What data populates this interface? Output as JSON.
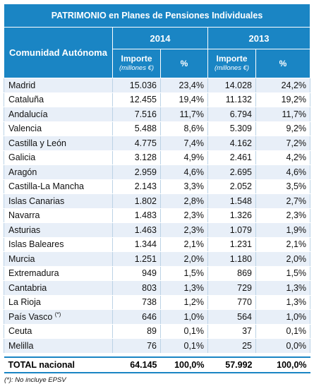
{
  "title": "PATRIMONIO en Planes de Pensiones Individuales",
  "headers": {
    "region": "Comunidad Autónoma",
    "year_a": "2014",
    "year_b": "2013",
    "importe": "Importe",
    "importe_unit": "(millones €)",
    "percent": "%"
  },
  "rows": [
    {
      "name": "Madrid",
      "note": "",
      "imp14": "15.036",
      "pct14": "23,4%",
      "imp13": "14.028",
      "pct13": "24,2%"
    },
    {
      "name": "Cataluña",
      "note": "",
      "imp14": "12.455",
      "pct14": "19,4%",
      "imp13": "11.132",
      "pct13": "19,2%"
    },
    {
      "name": "Andalucía",
      "note": "",
      "imp14": "7.516",
      "pct14": "11,7%",
      "imp13": "6.794",
      "pct13": "11,7%"
    },
    {
      "name": "Valencia",
      "note": "",
      "imp14": "5.488",
      "pct14": "8,6%",
      "imp13": "5.309",
      "pct13": "9,2%"
    },
    {
      "name": "Castilla y León",
      "note": "",
      "imp14": "4.775",
      "pct14": "7,4%",
      "imp13": "4.162",
      "pct13": "7,2%"
    },
    {
      "name": "Galicia",
      "note": "",
      "imp14": "3.128",
      "pct14": "4,9%",
      "imp13": "2.461",
      "pct13": "4,2%"
    },
    {
      "name": "Aragón",
      "note": "",
      "imp14": "2.959",
      "pct14": "4,6%",
      "imp13": "2.695",
      "pct13": "4,6%"
    },
    {
      "name": "Castilla-La Mancha",
      "note": "",
      "imp14": "2.143",
      "pct14": "3,3%",
      "imp13": "2.052",
      "pct13": "3,5%"
    },
    {
      "name": "Islas Canarias",
      "note": "",
      "imp14": "1.802",
      "pct14": "2,8%",
      "imp13": "1.548",
      "pct13": "2,7%"
    },
    {
      "name": "Navarra",
      "note": "",
      "imp14": "1.483",
      "pct14": "2,3%",
      "imp13": "1.326",
      "pct13": "2,3%"
    },
    {
      "name": "Asturias",
      "note": "",
      "imp14": "1.463",
      "pct14": "2,3%",
      "imp13": "1.079",
      "pct13": "1,9%"
    },
    {
      "name": "Islas Baleares",
      "note": "",
      "imp14": "1.344",
      "pct14": "2,1%",
      "imp13": "1.231",
      "pct13": "2,1%"
    },
    {
      "name": "Murcia",
      "note": "",
      "imp14": "1.251",
      "pct14": "2,0%",
      "imp13": "1.180",
      "pct13": "2,0%"
    },
    {
      "name": "Extremadura",
      "note": "",
      "imp14": "949",
      "pct14": "1,5%",
      "imp13": "869",
      "pct13": "1,5%"
    },
    {
      "name": "Cantabria",
      "note": "",
      "imp14": "803",
      "pct14": "1,3%",
      "imp13": "729",
      "pct13": "1,3%"
    },
    {
      "name": "La Rioja",
      "note": "",
      "imp14": "738",
      "pct14": "1,2%",
      "imp13": "770",
      "pct13": "1,3%"
    },
    {
      "name": "País Vasco",
      "note": "(*)",
      "imp14": "646",
      "pct14": "1,0%",
      "imp13": "564",
      "pct13": "1,0%"
    },
    {
      "name": "Ceuta",
      "note": "",
      "imp14": "89",
      "pct14": "0,1%",
      "imp13": "37",
      "pct13": "0,1%"
    },
    {
      "name": "Melilla",
      "note": "",
      "imp14": "76",
      "pct14": "0,1%",
      "imp13": "25",
      "pct13": "0,0%"
    }
  ],
  "total": {
    "name": "TOTAL nacional",
    "imp14": "64.145",
    "pct14": "100,0%",
    "imp13": "57.992",
    "pct13": "100,0%"
  },
  "footnote": "(*): No incluye EPSV"
}
